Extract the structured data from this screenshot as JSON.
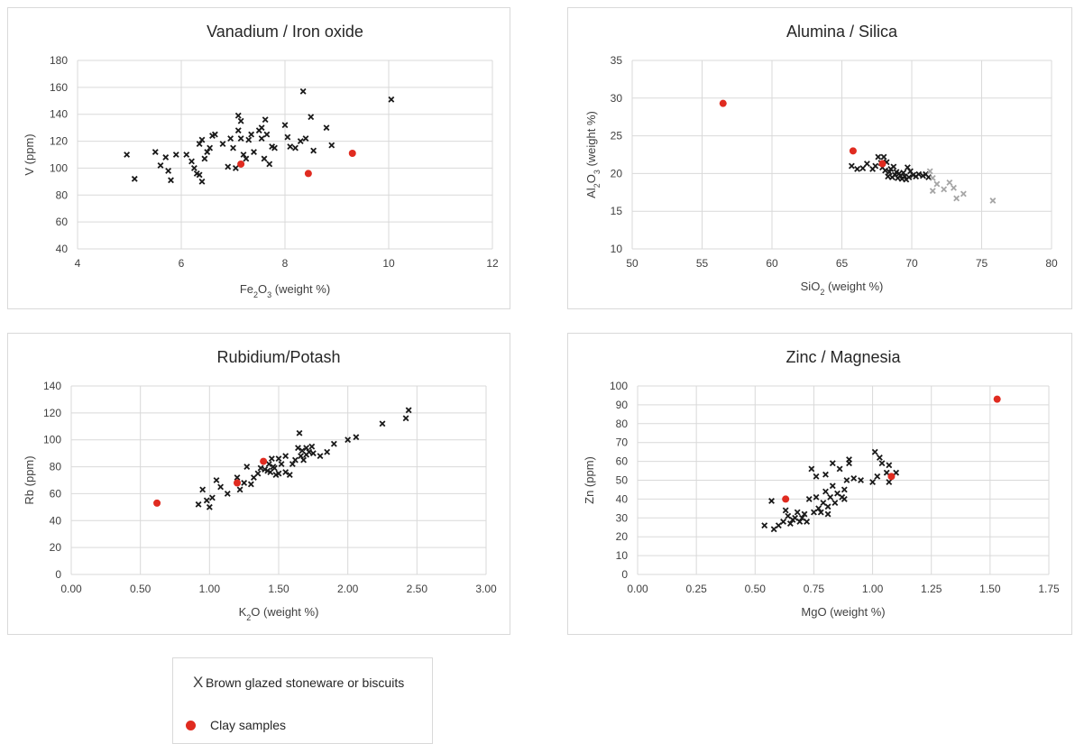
{
  "colors": {
    "cross": "#1a1a1a",
    "cross_gray": "#a6a6a6",
    "clay": "#e02b20",
    "grid": "#d9d9d9",
    "text": "#404040"
  },
  "legend": {
    "items": [
      {
        "icon": "x-marker",
        "label": "Brown glazed stoneware or biscuits"
      },
      {
        "icon": "red-dot-marker",
        "label": "Clay samples"
      }
    ]
  },
  "chart_data": [
    {
      "type": "scatter",
      "title": "Vanadium / Iron oxide",
      "xlabel_parts": [
        "Fe",
        "2",
        "O",
        "3",
        " (weight %)"
      ],
      "ylabel": "V (ppm)",
      "xlim": [
        4,
        12
      ],
      "ylim": [
        40,
        180
      ],
      "xticks": [
        4,
        6,
        8,
        10,
        12
      ],
      "yticks": [
        40,
        60,
        80,
        100,
        120,
        140,
        160,
        180
      ],
      "tick_decimals": 0,
      "grid": true,
      "series": [
        {
          "marker": "x",
          "color": "dark",
          "points": [
            [
              4.95,
              110
            ],
            [
              5.1,
              92
            ],
            [
              5.5,
              112
            ],
            [
              5.6,
              102
            ],
            [
              5.7,
              108
            ],
            [
              5.75,
              98
            ],
            [
              5.8,
              91
            ],
            [
              5.9,
              110
            ],
            [
              6.1,
              110
            ],
            [
              6.2,
              105
            ],
            [
              6.25,
              100
            ],
            [
              6.3,
              96
            ],
            [
              6.35,
              95
            ],
            [
              6.35,
              118
            ],
            [
              6.4,
              90
            ],
            [
              6.4,
              121
            ],
            [
              6.45,
              107
            ],
            [
              6.5,
              112
            ],
            [
              6.55,
              115
            ],
            [
              6.6,
              124
            ],
            [
              6.65,
              125
            ],
            [
              6.8,
              118
            ],
            [
              6.9,
              101
            ],
            [
              6.95,
              122
            ],
            [
              7.0,
              115
            ],
            [
              7.05,
              100
            ],
            [
              7.1,
              128
            ],
            [
              7.1,
              139
            ],
            [
              7.15,
              135
            ],
            [
              7.15,
              122
            ],
            [
              7.2,
              110
            ],
            [
              7.25,
              107
            ],
            [
              7.3,
              121
            ],
            [
              7.35,
              125
            ],
            [
              7.4,
              112
            ],
            [
              7.5,
              128
            ],
            [
              7.55,
              122
            ],
            [
              7.55,
              130
            ],
            [
              7.6,
              107
            ],
            [
              7.62,
              136
            ],
            [
              7.65,
              125
            ],
            [
              7.7,
              103
            ],
            [
              7.75,
              116
            ],
            [
              7.8,
              115
            ],
            [
              8.0,
              132
            ],
            [
              8.05,
              123
            ],
            [
              8.1,
              116
            ],
            [
              8.2,
              115
            ],
            [
              8.3,
              120
            ],
            [
              8.35,
              157
            ],
            [
              8.4,
              122
            ],
            [
              8.5,
              138
            ],
            [
              8.55,
              113
            ],
            [
              8.8,
              130
            ],
            [
              8.9,
              117
            ],
            [
              10.05,
              151
            ]
          ]
        },
        {
          "marker": "dot",
          "color": "red",
          "points": [
            [
              7.15,
              103
            ],
            [
              8.45,
              96
            ],
            [
              9.3,
              111
            ]
          ]
        }
      ]
    },
    {
      "type": "scatter",
      "title": "Alumina  / Silica",
      "xlabel_parts": [
        "SiO",
        "2",
        "  (weight %)"
      ],
      "ylabel_parts": [
        "Al",
        "2",
        "O",
        "3",
        " (weight %)"
      ],
      "xlim": [
        50,
        80
      ],
      "ylim": [
        10,
        35
      ],
      "xticks": [
        50,
        55,
        60,
        65,
        70,
        75,
        80
      ],
      "yticks": [
        10,
        15,
        20,
        25,
        30,
        35
      ],
      "tick_decimals": 0,
      "grid": true,
      "series": [
        {
          "marker": "x",
          "color": "dark",
          "points": [
            [
              65.7,
              21.0
            ],
            [
              66.1,
              20.6
            ],
            [
              66.5,
              20.7
            ],
            [
              66.8,
              21.3
            ],
            [
              67.2,
              20.6
            ],
            [
              67.4,
              21.0
            ],
            [
              67.6,
              22.2
            ],
            [
              67.8,
              21.4
            ],
            [
              67.9,
              20.8
            ],
            [
              68.0,
              22.2
            ],
            [
              68.1,
              20.4
            ],
            [
              68.2,
              21.5
            ],
            [
              68.3,
              19.6
            ],
            [
              68.4,
              20.2
            ],
            [
              68.5,
              20.6
            ],
            [
              68.6,
              19.5
            ],
            [
              68.7,
              20.9
            ],
            [
              68.8,
              19.8
            ],
            [
              68.9,
              20.2
            ],
            [
              69.0,
              19.4
            ],
            [
              69.1,
              20.0
            ],
            [
              69.2,
              19.7
            ],
            [
              69.3,
              19.3
            ],
            [
              69.4,
              20.1
            ],
            [
              69.5,
              19.6
            ],
            [
              69.6,
              19.2
            ],
            [
              69.7,
              20.8
            ],
            [
              69.8,
              19.5
            ],
            [
              69.9,
              20.3
            ],
            [
              70.1,
              19.8
            ],
            [
              70.3,
              19.6
            ],
            [
              70.5,
              19.9
            ],
            [
              70.8,
              19.7
            ],
            [
              71.0,
              19.9
            ],
            [
              71.2,
              19.5
            ]
          ]
        },
        {
          "marker": "x",
          "color": "gray",
          "points": [
            [
              71.3,
              20.3
            ],
            [
              71.5,
              19.4
            ],
            [
              71.5,
              17.7
            ],
            [
              71.8,
              18.6
            ],
            [
              72.3,
              17.9
            ],
            [
              72.7,
              18.8
            ],
            [
              73.0,
              18.1
            ],
            [
              73.2,
              16.7
            ],
            [
              73.7,
              17.3
            ],
            [
              75.8,
              16.4
            ]
          ]
        },
        {
          "marker": "dot",
          "color": "red",
          "points": [
            [
              56.5,
              29.3
            ],
            [
              65.8,
              23.0
            ],
            [
              67.9,
              21.3
            ]
          ]
        }
      ]
    },
    {
      "type": "scatter",
      "title": "Rubidium/Potash",
      "xlabel_parts": [
        "K",
        "2",
        "O (weight %)"
      ],
      "ylabel": "Rb (ppm)",
      "xlim": [
        0,
        3
      ],
      "ylim": [
        0,
        140
      ],
      "xticks": [
        0,
        0.5,
        1,
        1.5,
        2,
        2.5,
        3
      ],
      "yticks": [
        0,
        20,
        40,
        60,
        80,
        100,
        120,
        140
      ],
      "tick_decimals": 2,
      "grid": true,
      "series": [
        {
          "marker": "x",
          "color": "dark",
          "points": [
            [
              0.92,
              52
            ],
            [
              0.95,
              63
            ],
            [
              0.98,
              55
            ],
            [
              1.0,
              50
            ],
            [
              1.02,
              57
            ],
            [
              1.05,
              70
            ],
            [
              1.08,
              65
            ],
            [
              1.13,
              60
            ],
            [
              1.2,
              72
            ],
            [
              1.22,
              63
            ],
            [
              1.25,
              68
            ],
            [
              1.27,
              80
            ],
            [
              1.3,
              67
            ],
            [
              1.32,
              72
            ],
            [
              1.35,
              75
            ],
            [
              1.37,
              79
            ],
            [
              1.4,
              78
            ],
            [
              1.42,
              77
            ],
            [
              1.43,
              82
            ],
            [
              1.44,
              76
            ],
            [
              1.45,
              86
            ],
            [
              1.46,
              80
            ],
            [
              1.47,
              79
            ],
            [
              1.48,
              74
            ],
            [
              1.5,
              75
            ],
            [
              1.5,
              86
            ],
            [
              1.52,
              82
            ],
            [
              1.55,
              88
            ],
            [
              1.55,
              76
            ],
            [
              1.58,
              74
            ],
            [
              1.6,
              82
            ],
            [
              1.62,
              85
            ],
            [
              1.64,
              94
            ],
            [
              1.65,
              105
            ],
            [
              1.66,
              88
            ],
            [
              1.67,
              92
            ],
            [
              1.68,
              85
            ],
            [
              1.7,
              94
            ],
            [
              1.7,
              89
            ],
            [
              1.72,
              91
            ],
            [
              1.74,
              95
            ],
            [
              1.75,
              90
            ],
            [
              1.8,
              88
            ],
            [
              1.85,
              91
            ],
            [
              1.9,
              97
            ],
            [
              2.0,
              100
            ],
            [
              2.06,
              102
            ],
            [
              2.25,
              112
            ],
            [
              2.42,
              116
            ],
            [
              2.44,
              122
            ]
          ]
        },
        {
          "marker": "dot",
          "color": "red",
          "points": [
            [
              0.62,
              53
            ],
            [
              1.2,
              68
            ],
            [
              1.39,
              84
            ]
          ]
        }
      ]
    },
    {
      "type": "scatter",
      "title": "Zinc / Magnesia",
      "xlabel_parts": [
        "MgO (weight %)"
      ],
      "ylabel": "Zn (ppm)",
      "xlim": [
        0,
        1.75
      ],
      "ylim": [
        0,
        100
      ],
      "xticks": [
        0,
        0.25,
        0.5,
        0.75,
        1,
        1.25,
        1.5,
        1.75
      ],
      "yticks": [
        0,
        10,
        20,
        30,
        40,
        50,
        60,
        70,
        80,
        90,
        100
      ],
      "tick_decimals": 2,
      "grid": true,
      "series": [
        {
          "marker": "x",
          "color": "dark",
          "points": [
            [
              0.54,
              26
            ],
            [
              0.57,
              39
            ],
            [
              0.58,
              24
            ],
            [
              0.6,
              26
            ],
            [
              0.62,
              28
            ],
            [
              0.63,
              34
            ],
            [
              0.64,
              31
            ],
            [
              0.65,
              27
            ],
            [
              0.66,
              29
            ],
            [
              0.67,
              30
            ],
            [
              0.68,
              33
            ],
            [
              0.69,
              28
            ],
            [
              0.7,
              30
            ],
            [
              0.71,
              32
            ],
            [
              0.72,
              28
            ],
            [
              0.73,
              40
            ],
            [
              0.74,
              56
            ],
            [
              0.75,
              33
            ],
            [
              0.76,
              41
            ],
            [
              0.76,
              52
            ],
            [
              0.77,
              35
            ],
            [
              0.78,
              33
            ],
            [
              0.79,
              38
            ],
            [
              0.8,
              44
            ],
            [
              0.8,
              53
            ],
            [
              0.81,
              32
            ],
            [
              0.81,
              36
            ],
            [
              0.82,
              41
            ],
            [
              0.83,
              47
            ],
            [
              0.83,
              59
            ],
            [
              0.84,
              38
            ],
            [
              0.85,
              43
            ],
            [
              0.86,
              56
            ],
            [
              0.87,
              41
            ],
            [
              0.88,
              40
            ],
            [
              0.88,
              45
            ],
            [
              0.89,
              50
            ],
            [
              0.9,
              59
            ],
            [
              0.9,
              61
            ],
            [
              0.92,
              51
            ],
            [
              0.95,
              50
            ],
            [
              1.0,
              49
            ],
            [
              1.01,
              65
            ],
            [
              1.02,
              52
            ],
            [
              1.03,
              62
            ],
            [
              1.04,
              59
            ],
            [
              1.06,
              54
            ],
            [
              1.07,
              58
            ],
            [
              1.07,
              49
            ],
            [
              1.1,
              54
            ]
          ]
        },
        {
          "marker": "dot",
          "color": "red",
          "points": [
            [
              0.63,
              40
            ],
            [
              1.08,
              52
            ],
            [
              1.53,
              93
            ]
          ]
        }
      ]
    }
  ]
}
